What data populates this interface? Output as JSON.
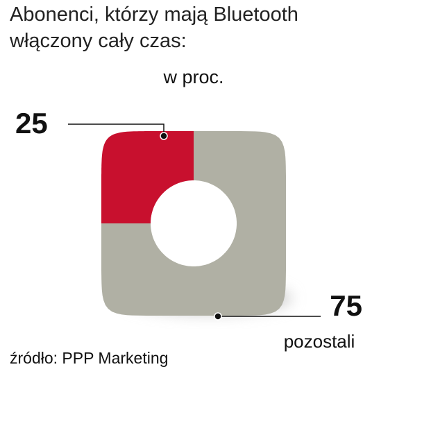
{
  "chart_data": {
    "type": "donut",
    "title": "Abonenci, którzy mają Bluetooth włączony cały czas:",
    "subtitle": "w proc.",
    "categories": [
      null,
      "pozostali"
    ],
    "values": [
      25,
      75
    ],
    "colors": [
      "#c8102e",
      "#b0b0a4"
    ],
    "source": "źródło: PPP Marketing"
  }
}
